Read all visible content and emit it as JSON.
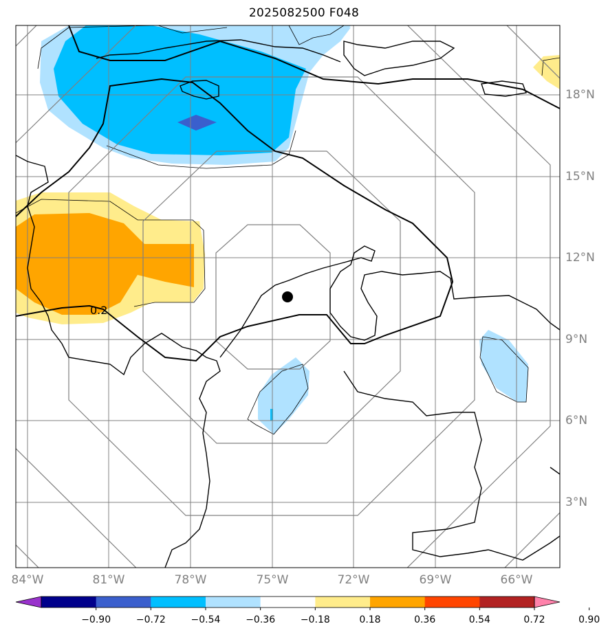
{
  "title": "2025082500 F048",
  "lon_labels": [
    "84°W",
    "81°W",
    "78°W",
    "75°W",
    "72°W",
    "69°W",
    "66°W"
  ],
  "lat_labels": [
    "18°N",
    "15°N",
    "12°N",
    "9°N",
    "6°N",
    "3°N"
  ],
  "contour_label": "0.2",
  "colorbar": {
    "ticks": [
      "−0.90",
      "−0.72",
      "−0.54",
      "−0.36",
      "−0.18",
      "0.18",
      "0.36",
      "0.54",
      "0.72",
      "0.90"
    ],
    "colors": [
      "#9932cc",
      "#00008b",
      "#3a5fcd",
      "#00bfff",
      "#b0e2ff",
      "#ffffff",
      "#ffec8b",
      "#ffa500",
      "#ff4500",
      "#b22222",
      "#ff82ab"
    ]
  },
  "marker": "storm-center-dot"
}
